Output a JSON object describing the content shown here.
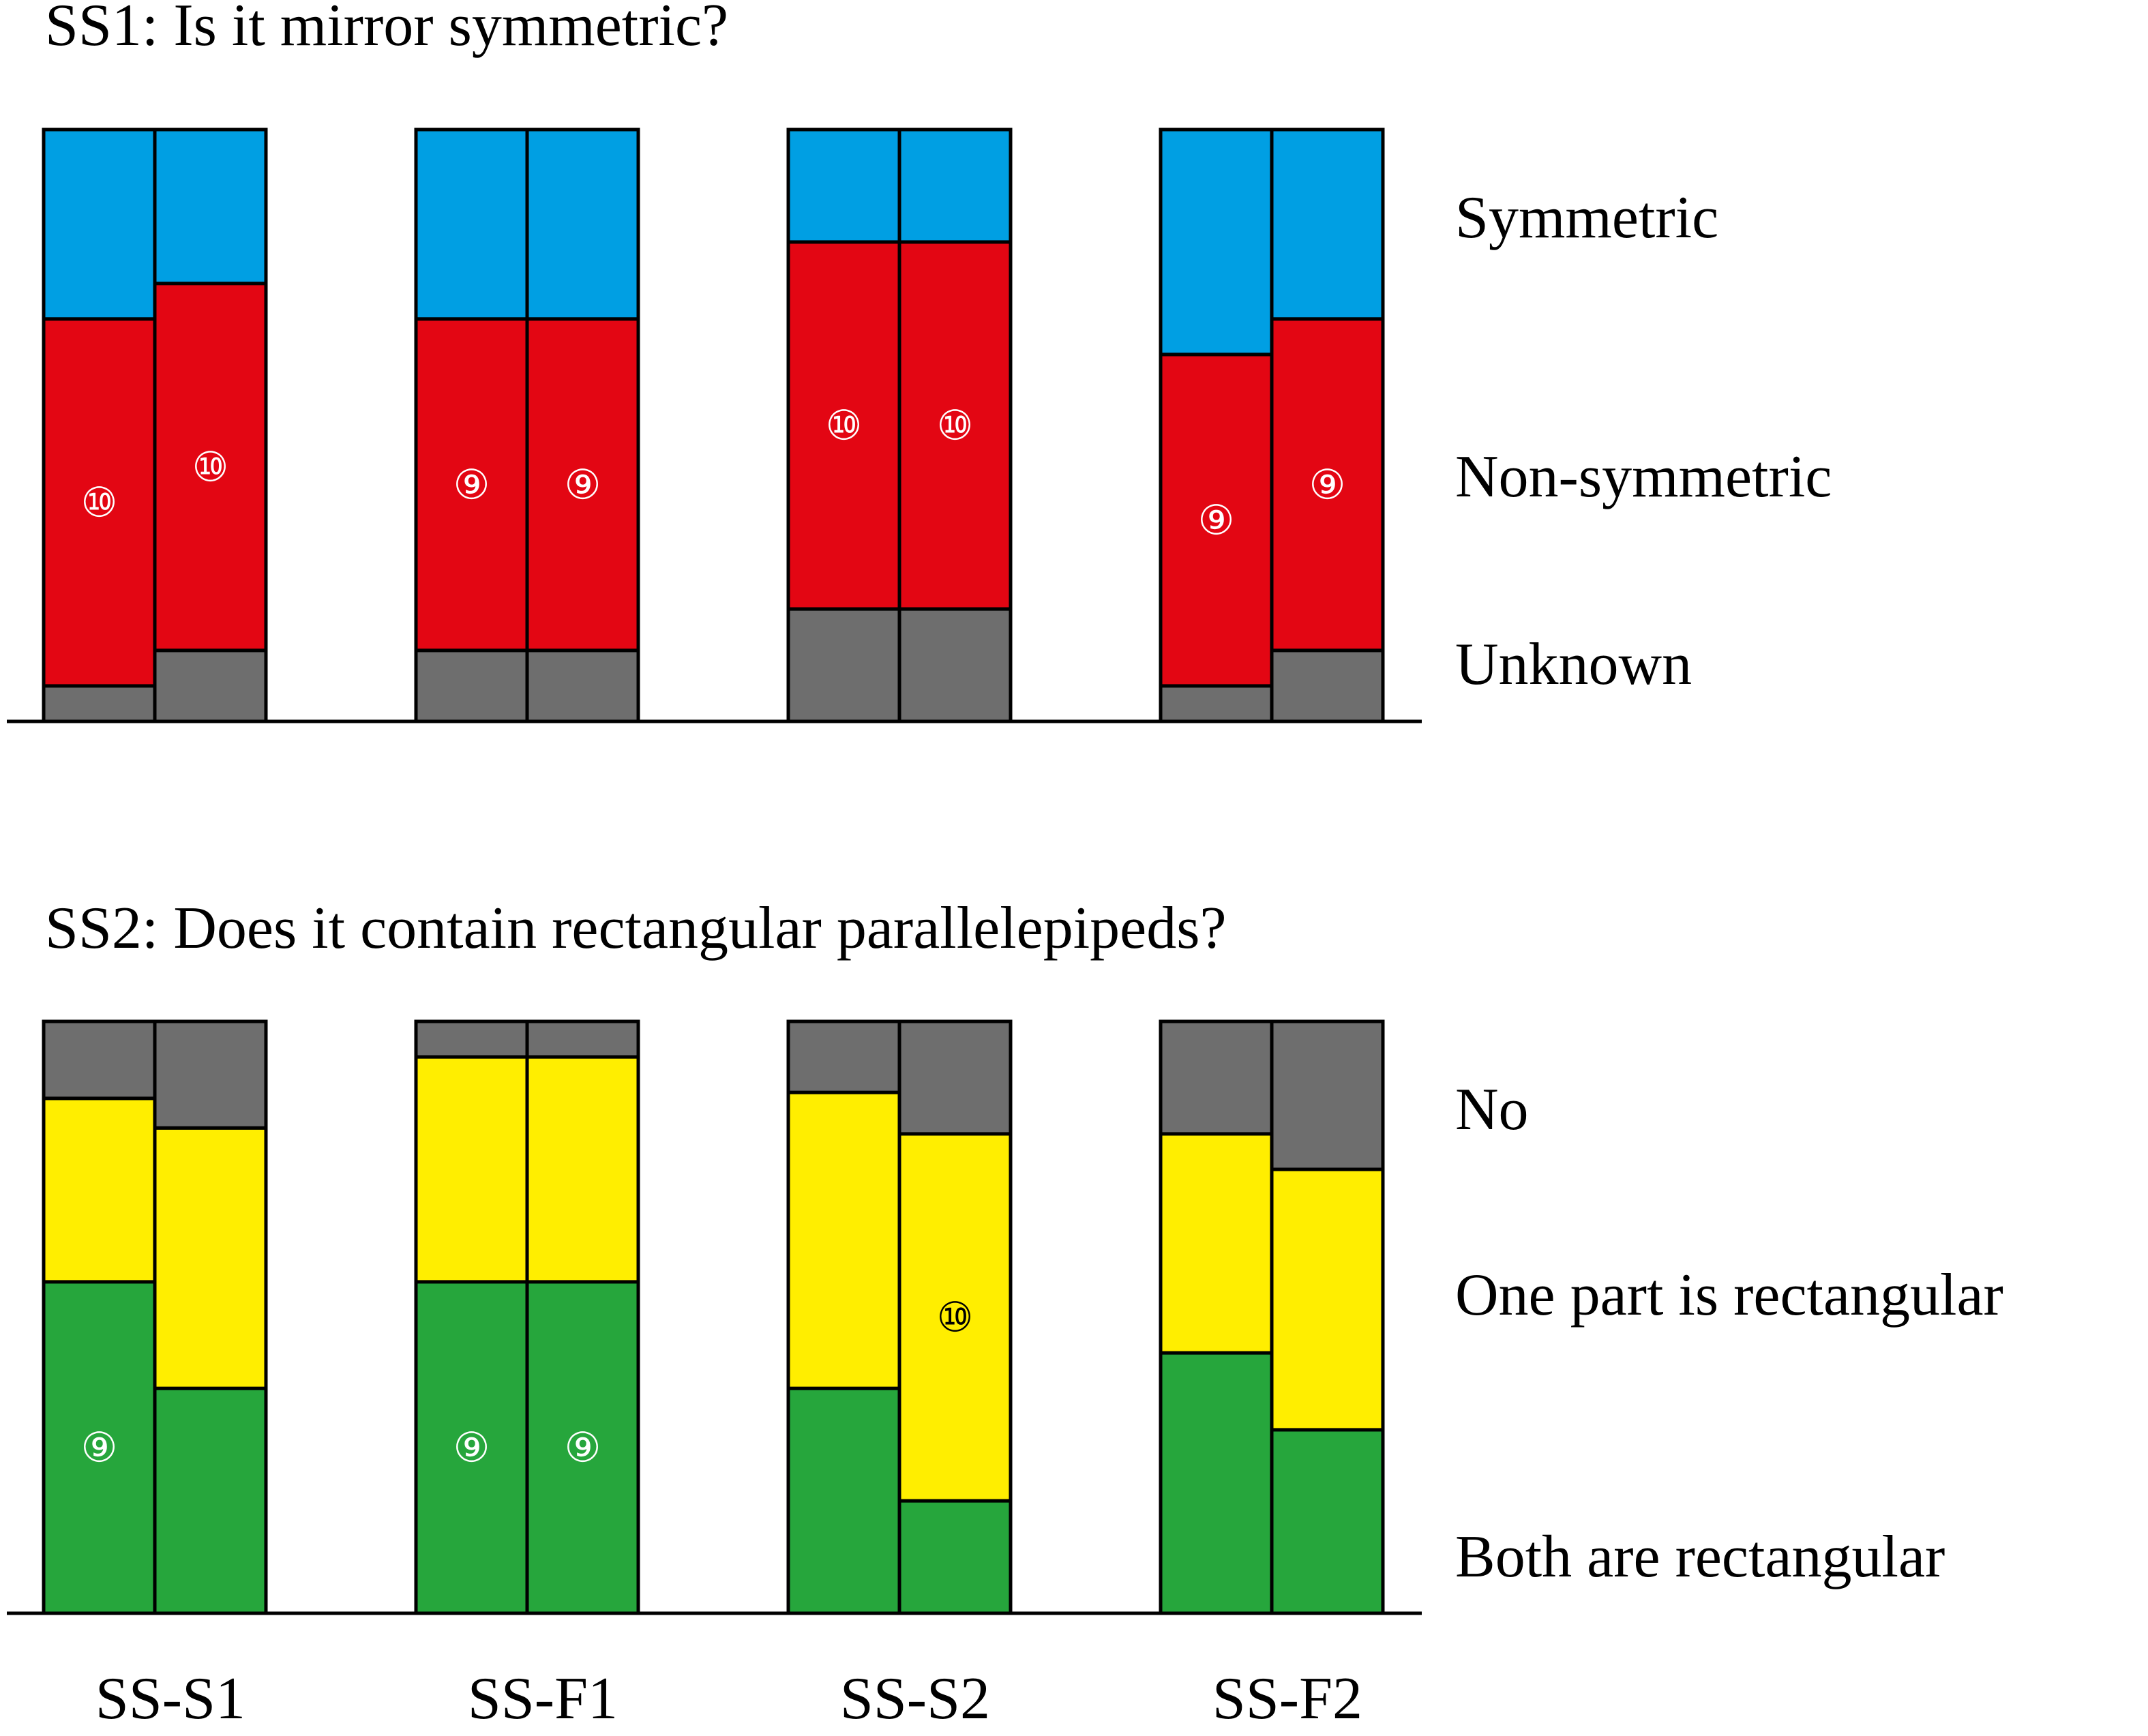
{
  "categories": [
    "SS-S1",
    "SS-F1",
    "SS-S2",
    "SS-F2"
  ],
  "chart_data": [
    {
      "type": "bar",
      "stacked": true,
      "normalized": true,
      "title": "SS1: Is it mirror symmetric?",
      "categories": [
        "SS-S1",
        "SS-F1",
        "SS-S2",
        "SS-F2"
      ],
      "bars_per_category": 2,
      "ylim": [
        0,
        1
      ],
      "legend_placement": "right",
      "series": [
        {
          "name": "Unknown",
          "color": "#6e6e6e",
          "values": [
            [
              0.06,
              0.12
            ],
            [
              0.12,
              0.12
            ],
            [
              0.19,
              0.19
            ],
            [
              0.06,
              0.12
            ]
          ]
        },
        {
          "name": "Non-symmetric",
          "color": "#e30613",
          "values": [
            [
              0.62,
              0.62
            ],
            [
              0.56,
              0.56
            ],
            [
              0.62,
              0.62
            ],
            [
              0.56,
              0.56
            ]
          ]
        },
        {
          "name": "Symmetric",
          "color": "#009fe3",
          "values": [
            [
              0.32,
              0.26
            ],
            [
              0.32,
              0.32
            ],
            [
              0.19,
              0.19
            ],
            [
              0.38,
              0.32
            ]
          ]
        }
      ],
      "annotations": [
        {
          "category": 0,
          "bar": 0,
          "series": "Non-symmetric",
          "label": "⑩"
        },
        {
          "category": 0,
          "bar": 1,
          "series": "Non-symmetric",
          "label": "⑩"
        },
        {
          "category": 1,
          "bar": 0,
          "series": "Non-symmetric",
          "label": "⑨"
        },
        {
          "category": 1,
          "bar": 1,
          "series": "Non-symmetric",
          "label": "⑨"
        },
        {
          "category": 2,
          "bar": 0,
          "series": "Non-symmetric",
          "label": "⑩"
        },
        {
          "category": 2,
          "bar": 1,
          "series": "Non-symmetric",
          "label": "⑩"
        },
        {
          "category": 3,
          "bar": 0,
          "series": "Non-symmetric",
          "label": "⑨"
        },
        {
          "category": 3,
          "bar": 1,
          "series": "Non-symmetric",
          "label": "⑨"
        }
      ]
    },
    {
      "type": "bar",
      "stacked": true,
      "normalized": true,
      "title": "SS2: Does it contain rectangular parallelepipeds?",
      "categories": [
        "SS-S1",
        "SS-F1",
        "SS-S2",
        "SS-F2"
      ],
      "bars_per_category": 2,
      "ylim": [
        0,
        1
      ],
      "legend_placement": "right",
      "series": [
        {
          "name": "Both are rectangular",
          "color": "#26a63c",
          "values": [
            [
              0.56,
              0.38
            ],
            [
              0.56,
              0.56
            ],
            [
              0.38,
              0.19
            ],
            [
              0.44,
              0.31
            ]
          ]
        },
        {
          "name": "One part is rectangular",
          "color": "#ffee00",
          "values": [
            [
              0.31,
              0.44
            ],
            [
              0.38,
              0.38
            ],
            [
              0.5,
              0.62
            ],
            [
              0.37,
              0.44
            ]
          ]
        },
        {
          "name": "No",
          "color": "#6e6e6e",
          "values": [
            [
              0.13,
              0.18
            ],
            [
              0.06,
              0.06
            ],
            [
              0.12,
              0.19
            ],
            [
              0.19,
              0.25
            ]
          ]
        }
      ],
      "annotations": [
        {
          "category": 0,
          "bar": 0,
          "series": "Both are rectangular",
          "label": "⑨"
        },
        {
          "category": 1,
          "bar": 0,
          "series": "Both are rectangular",
          "label": "⑨"
        },
        {
          "category": 1,
          "bar": 1,
          "series": "Both are rectangular",
          "label": "⑨"
        },
        {
          "category": 2,
          "bar": 1,
          "series": "One part is rectangular",
          "label": "⑩"
        }
      ]
    }
  ]
}
